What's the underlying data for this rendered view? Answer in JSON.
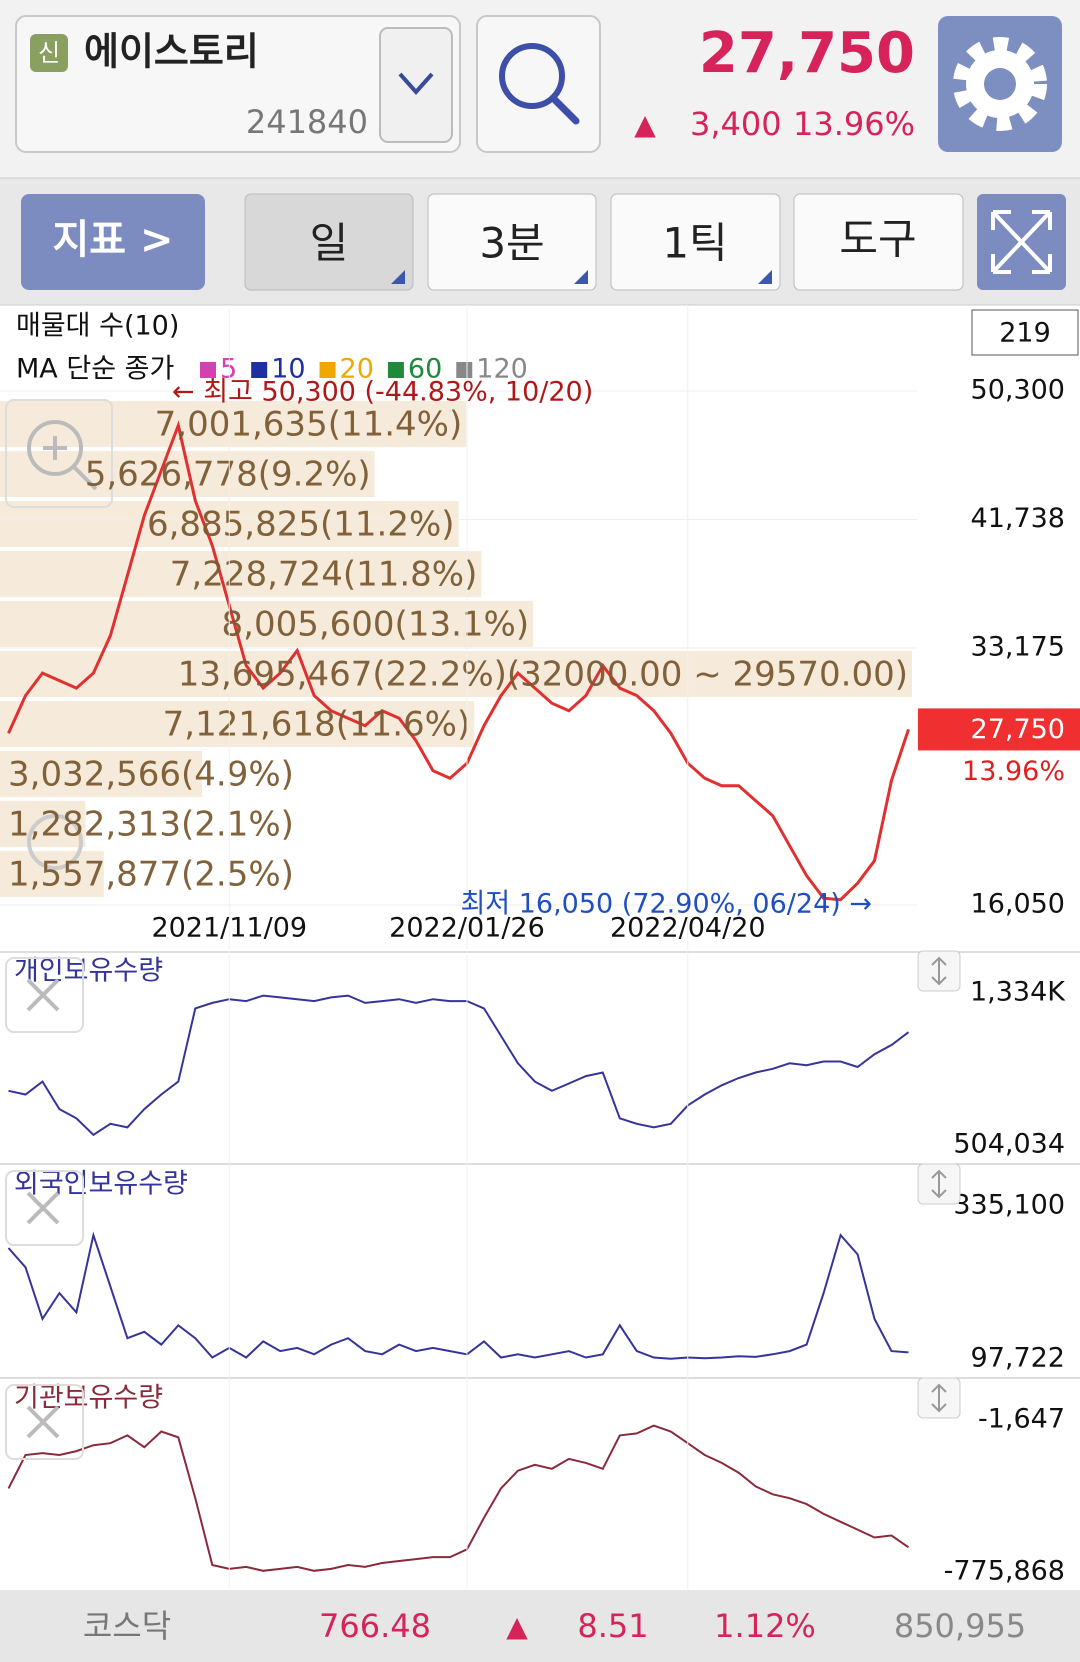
{
  "header": {
    "badge": "신",
    "name": "에이스토리",
    "code": "241840",
    "price": "27,750",
    "change_arrow": "▲",
    "change": "3,400",
    "change_pct": "13.96%"
  },
  "toolbar": {
    "indicator": "지표 >",
    "period": "일",
    "minute": "3분",
    "tick": "1틱",
    "tools": "도구"
  },
  "chart_data": [
    {
      "type": "line",
      "indicator_label": "매물대 수(10)",
      "ma_label": "MA 단순 종가",
      "count_box": "219",
      "ma_legend": [
        {
          "name": "5",
          "color": "#d63fb0"
        },
        {
          "name": "10",
          "color": "#1f2fa0"
        },
        {
          "name": "20",
          "color": "#f0a800"
        },
        {
          "name": "60",
          "color": "#1e8a3a"
        },
        {
          "name": "120",
          "color": "#888888"
        }
      ],
      "categories": [
        null,
        null,
        null,
        null,
        null,
        null,
        null,
        null,
        null,
        null,
        null,
        null,
        null,
        "2021/11/09",
        null,
        null,
        null,
        null,
        null,
        null,
        null,
        null,
        null,
        null,
        null,
        null,
        null,
        "2022/01/26",
        null,
        null,
        null,
        null,
        null,
        null,
        null,
        null,
        null,
        null,
        null,
        null,
        "2022/04/20",
        null,
        null,
        null,
        null,
        null,
        null,
        null,
        null,
        null,
        null,
        null,
        null,
        null
      ],
      "color": "#e03030",
      "values": [
        27500,
        30000,
        31500,
        31000,
        30500,
        31500,
        34000,
        38000,
        42000,
        45000,
        48000,
        43000,
        40000,
        36000,
        32000,
        30500,
        31500,
        33000,
        30000,
        29000,
        28500,
        28000,
        29000,
        28500,
        27000,
        25000,
        24500,
        25500,
        28000,
        30000,
        31500,
        30500,
        29500,
        29000,
        30000,
        32000,
        30500,
        30000,
        29000,
        27500,
        25500,
        24500,
        24000,
        24000,
        23000,
        22000,
        20000,
        18000,
        16500,
        16400,
        17500,
        19000,
        24350,
        27750
      ],
      "ylim": [
        16050,
        50300
      ],
      "yticks": [
        {
          "value": 50300,
          "label": "50,300"
        },
        {
          "value": 41738,
          "label": "41,738"
        },
        {
          "value": 33175,
          "label": "33,175"
        },
        {
          "value": 16050,
          "label": "16,050"
        }
      ],
      "last_price": {
        "value": 27750,
        "label": "27,750"
      },
      "last_pct": "13.96%",
      "annotations": {
        "high": "← 최고 50,300 (-44.83%, 10/20)",
        "low": "최저 16,050 (72.90%, 06/24) →"
      },
      "volume_profile": {
        "values": [
          7001635,
          5626778,
          6885825,
          7228724,
          8005600,
          13695467,
          7121618,
          3032566,
          1282313,
          1557877
        ],
        "value_labels": [
          "7,001,635(11.4%)",
          "5,626,778(9.2%)",
          "6,885,825(11.2%)",
          "7,228,724(11.8%)",
          "8,005,600(13.1%)",
          "13,695,467(22.2%)(32000.00 ~ 29570.00)",
          "7,121,618(11.6%)",
          "3,032,566(4.9%)",
          "1,282,313(2.1%)",
          "1,557,877(2.5%)"
        ]
      }
    },
    {
      "type": "line",
      "title": "개인보유수량",
      "color": "#34349a",
      "values": [
        800000,
        780000,
        850000,
        700000,
        650000,
        560000,
        620000,
        600000,
        700000,
        780000,
        850000,
        1250000,
        1280000,
        1300000,
        1290000,
        1320000,
        1310000,
        1300000,
        1290000,
        1310000,
        1320000,
        1280000,
        1290000,
        1300000,
        1280000,
        1300000,
        1290000,
        1290000,
        1250000,
        1100000,
        950000,
        850000,
        800000,
        840000,
        880000,
        900000,
        650000,
        620000,
        600000,
        620000,
        720000,
        780000,
        830000,
        870000,
        900000,
        920000,
        950000,
        940000,
        960000,
        960000,
        930000,
        1000000,
        1050000,
        1120000
      ],
      "ylim": [
        504034,
        1334000
      ],
      "yticks": [
        {
          "value": 1334000,
          "label": "1,334K"
        },
        {
          "value": 504034,
          "label": "504,034"
        }
      ]
    },
    {
      "type": "line",
      "title": "외국인보유수량",
      "color": "#34349a",
      "values": [
        270000,
        240000,
        160000,
        200000,
        170000,
        290000,
        210000,
        130000,
        140000,
        120000,
        150000,
        130000,
        100000,
        115000,
        100000,
        125000,
        110000,
        115000,
        105000,
        120000,
        130000,
        110000,
        105000,
        120000,
        110000,
        115000,
        110000,
        105000,
        125000,
        100000,
        105000,
        100000,
        105000,
        110000,
        100000,
        105000,
        150000,
        110000,
        100000,
        98000,
        100000,
        99000,
        100000,
        102000,
        101000,
        105000,
        110000,
        120000,
        200000,
        290000,
        260000,
        160000,
        110000,
        108000
      ],
      "ylim": [
        97722,
        335100
      ],
      "yticks": [
        {
          "value": 335100,
          "label": "335,100"
        },
        {
          "value": 97722,
          "label": "97,722"
        }
      ]
    },
    {
      "type": "line",
      "title": "기관보유수량",
      "color": "#8a2a3a",
      "values": [
        -350000,
        -180000,
        -170000,
        -180000,
        -160000,
        -130000,
        -120000,
        -80000,
        -140000,
        -60000,
        -90000,
        -400000,
        -740000,
        -760000,
        -750000,
        -770000,
        -760000,
        -750000,
        -770000,
        -760000,
        -740000,
        -750000,
        -730000,
        -720000,
        -710000,
        -700000,
        -700000,
        -660000,
        -500000,
        -350000,
        -260000,
        -230000,
        -250000,
        -200000,
        -220000,
        -250000,
        -80000,
        -70000,
        -30000,
        -60000,
        -120000,
        -180000,
        -220000,
        -270000,
        -340000,
        -380000,
        -400000,
        -430000,
        -480000,
        -520000,
        -560000,
        -600000,
        -590000,
        -650000
      ],
      "ylim": [
        -775868,
        -1647
      ],
      "yticks": [
        {
          "value": -1647,
          "label": "-1,647"
        },
        {
          "value": -775868,
          "label": "-775,868"
        }
      ]
    }
  ],
  "footer": {
    "market": "코스닥",
    "index": "766.48",
    "arrow": "▲",
    "change": "8.51",
    "pct": "1.12%",
    "volume": "850,955"
  }
}
